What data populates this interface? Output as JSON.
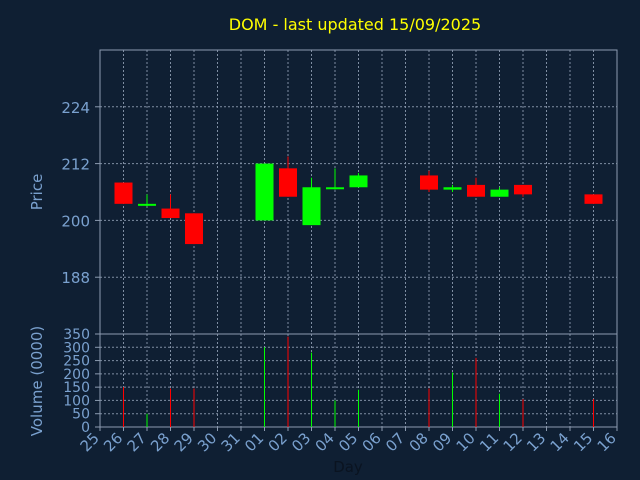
{
  "chart_data": [
    {
      "type": "candlestick",
      "title": "DOM - last updated 15/09/2025",
      "ylabel": "Price",
      "ylim": [
        176,
        236
      ],
      "yticks": [
        188,
        200,
        212,
        224
      ],
      "grid": true,
      "colors": {
        "up": "#00ff00",
        "down": "#ff0000"
      },
      "candles": [
        {
          "day": "26",
          "open": 208,
          "high": 208,
          "low": 203.5,
          "close": 203.5
        },
        {
          "day": "27",
          "open": 203.5,
          "high": 205.5,
          "low": 203,
          "close": 203.5
        },
        {
          "day": "28",
          "open": 202.5,
          "high": 205.5,
          "low": 200.5,
          "close": 200.5
        },
        {
          "day": "29",
          "open": 201.5,
          "high": 201.5,
          "low": 195,
          "close": 195
        },
        {
          "day": "01",
          "open": 200,
          "high": 212,
          "low": 200,
          "close": 212
        },
        {
          "day": "02",
          "open": 211,
          "high": 213.5,
          "low": 205,
          "close": 205
        },
        {
          "day": "03",
          "open": 199,
          "high": 209,
          "low": 199,
          "close": 207
        },
        {
          "day": "04",
          "open": 207,
          "high": 211,
          "low": 206.5,
          "close": 207
        },
        {
          "day": "05",
          "open": 207,
          "high": 210,
          "low": 207,
          "close": 209.5
        },
        {
          "day": "08",
          "open": 209.5,
          "high": 210.5,
          "low": 206,
          "close": 206.5
        },
        {
          "day": "09",
          "open": 206.5,
          "high": 207.5,
          "low": 206,
          "close": 207
        },
        {
          "day": "10",
          "open": 207.5,
          "high": 209,
          "low": 205,
          "close": 205
        },
        {
          "day": "11",
          "open": 205,
          "high": 207,
          "low": 205,
          "close": 206.5
        },
        {
          "day": "12",
          "open": 207.5,
          "high": 207.5,
          "low": 205,
          "close": 205.5
        },
        {
          "day": "15",
          "open": 205.5,
          "high": 205.5,
          "low": 203.5,
          "close": 203.5
        }
      ]
    },
    {
      "type": "bar",
      "ylabel": "Volume (0000)",
      "xlabel": "Day",
      "ylim": [
        0,
        350
      ],
      "yticks": [
        0,
        50,
        100,
        150,
        200,
        250,
        300,
        350
      ],
      "categories": [
        "25",
        "26",
        "27",
        "28",
        "29",
        "30",
        "31",
        "01",
        "02",
        "03",
        "04",
        "05",
        "06",
        "07",
        "08",
        "09",
        "10",
        "11",
        "12",
        "13",
        "14",
        "15",
        "16"
      ],
      "volumes": [
        {
          "day": "26",
          "value": 150,
          "color": "#ff0000"
        },
        {
          "day": "27",
          "value": 50,
          "color": "#00ff00"
        },
        {
          "day": "28",
          "value": 145,
          "color": "#ff0000"
        },
        {
          "day": "29",
          "value": 145,
          "color": "#ff0000"
        },
        {
          "day": "01",
          "value": 300,
          "color": "#00ff00"
        },
        {
          "day": "02",
          "value": 340,
          "color": "#ff0000"
        },
        {
          "day": "03",
          "value": 280,
          "color": "#00ff00"
        },
        {
          "day": "04",
          "value": 100,
          "color": "#00ff00"
        },
        {
          "day": "05",
          "value": 140,
          "color": "#00ff00"
        },
        {
          "day": "08",
          "value": 145,
          "color": "#ff0000"
        },
        {
          "day": "09",
          "value": 205,
          "color": "#00ff00"
        },
        {
          "day": "10",
          "value": 260,
          "color": "#ff0000"
        },
        {
          "day": "11",
          "value": 125,
          "color": "#00ff00"
        },
        {
          "day": "12",
          "value": 105,
          "color": "#ff0000"
        },
        {
          "day": "15",
          "value": 105,
          "color": "#ff0000"
        }
      ]
    }
  ]
}
